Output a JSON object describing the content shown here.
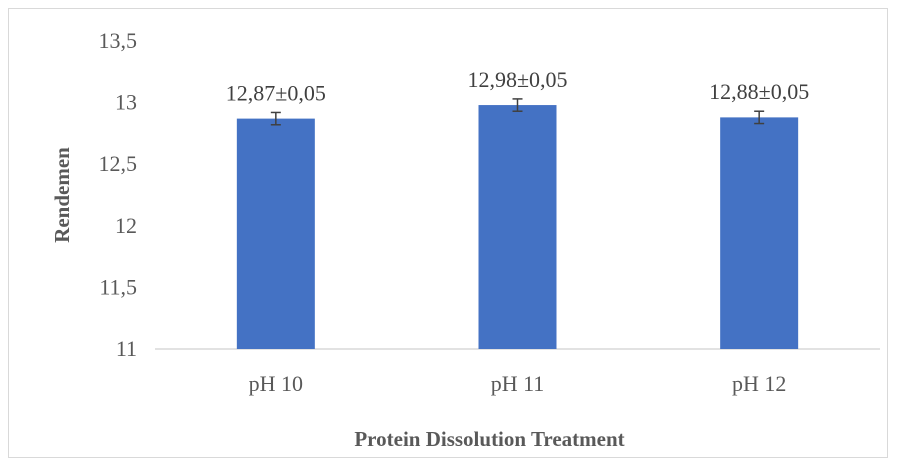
{
  "chart_data": {
    "type": "bar",
    "categories": [
      "pH 10",
      "pH 11",
      "pH 12"
    ],
    "values": [
      12.87,
      12.98,
      12.88
    ],
    "errors": [
      0.05,
      0.05,
      0.05
    ],
    "data_labels": [
      "12,87±0,05",
      "12,98±0,05",
      "12,88±0,05"
    ],
    "xlabel": "Protein Dissolution Treatment",
    "ylabel": "Rendemen",
    "ylim": [
      11,
      13.5
    ],
    "yticks": [
      11,
      11.5,
      12,
      12.5,
      13,
      13.5
    ],
    "ytick_labels": [
      "11",
      "11,5",
      "12",
      "12,5",
      "13",
      "13,5"
    ],
    "grid": false,
    "legend": "none",
    "bar_color": "#4472C4",
    "error_bar_color": "#404040"
  }
}
